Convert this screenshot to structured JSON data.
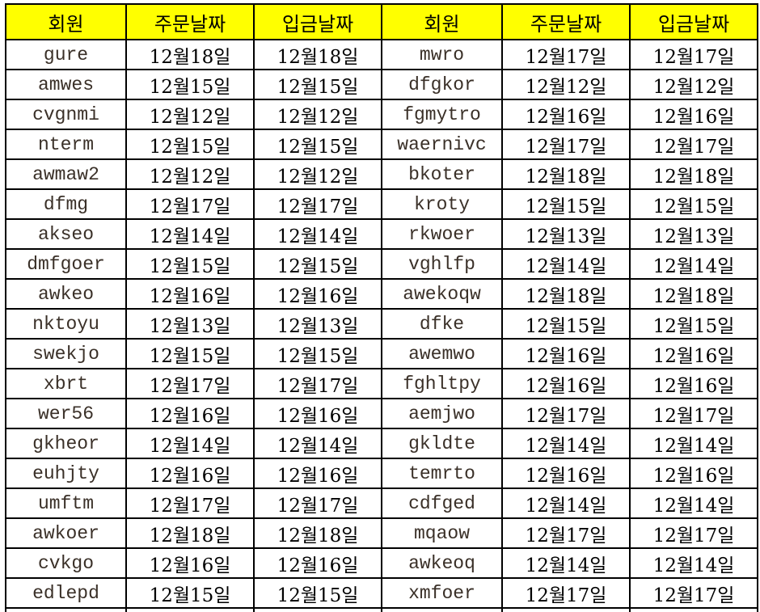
{
  "headers": [
    "회원",
    "주문날짜",
    "입금날짜",
    "회원",
    "주문날짜",
    "입금날짜"
  ],
  "header_color": "#ffff00",
  "rows": [
    [
      "gure",
      "12월18일",
      "12월18일",
      "mwro",
      "12월17일",
      "12월17일"
    ],
    [
      "amwes",
      "12월15일",
      "12월15일",
      "dfgkor",
      "12월12일",
      "12월12일"
    ],
    [
      "cvgnmi",
      "12월12일",
      "12월12일",
      "fgmytro",
      "12월16일",
      "12월16일"
    ],
    [
      "nterm",
      "12월15일",
      "12월15일",
      "waernivc",
      "12월17일",
      "12월17일"
    ],
    [
      "awmaw2",
      "12월12일",
      "12월12일",
      "bkoter",
      "12월18일",
      "12월18일"
    ],
    [
      "dfmg",
      "12월17일",
      "12월17일",
      "kroty",
      "12월15일",
      "12월15일"
    ],
    [
      "akseo",
      "12월14일",
      "12월14일",
      "rkwoer",
      "12월13일",
      "12월13일"
    ],
    [
      "dmfgoer",
      "12월15일",
      "12월15일",
      "vghlfp",
      "12월14일",
      "12월14일"
    ],
    [
      "awkeo",
      "12월16일",
      "12월16일",
      "awekoqw",
      "12월18일",
      "12월18일"
    ],
    [
      "nktoyu",
      "12월13일",
      "12월13일",
      "dfke",
      "12월15일",
      "12월15일"
    ],
    [
      "swekjo",
      "12월15일",
      "12월15일",
      "awemwo",
      "12월16일",
      "12월16일"
    ],
    [
      "xbrt",
      "12월17일",
      "12월17일",
      "fghltpy",
      "12월16일",
      "12월16일"
    ],
    [
      "wer56",
      "12월16일",
      "12월16일",
      "aemjwo",
      "12월17일",
      "12월17일"
    ],
    [
      "gkheor",
      "12월14일",
      "12월14일",
      "gkldte",
      "12월14일",
      "12월14일"
    ],
    [
      "euhjty",
      "12월16일",
      "12월16일",
      "temrto",
      "12월16일",
      "12월16일"
    ],
    [
      "umftm",
      "12월17일",
      "12월17일",
      "cdfged",
      "12월14일",
      "12월14일"
    ],
    [
      "awkoer",
      "12월18일",
      "12월18일",
      "mqaow",
      "12월17일",
      "12월17일"
    ],
    [
      "cvkgo",
      "12월16일",
      "12월16일",
      "awkeoq",
      "12월14일",
      "12월14일"
    ],
    [
      "edlepd",
      "12월15일",
      "12월15일",
      "xmfoer",
      "12월17일",
      "12월17일"
    ]
  ]
}
